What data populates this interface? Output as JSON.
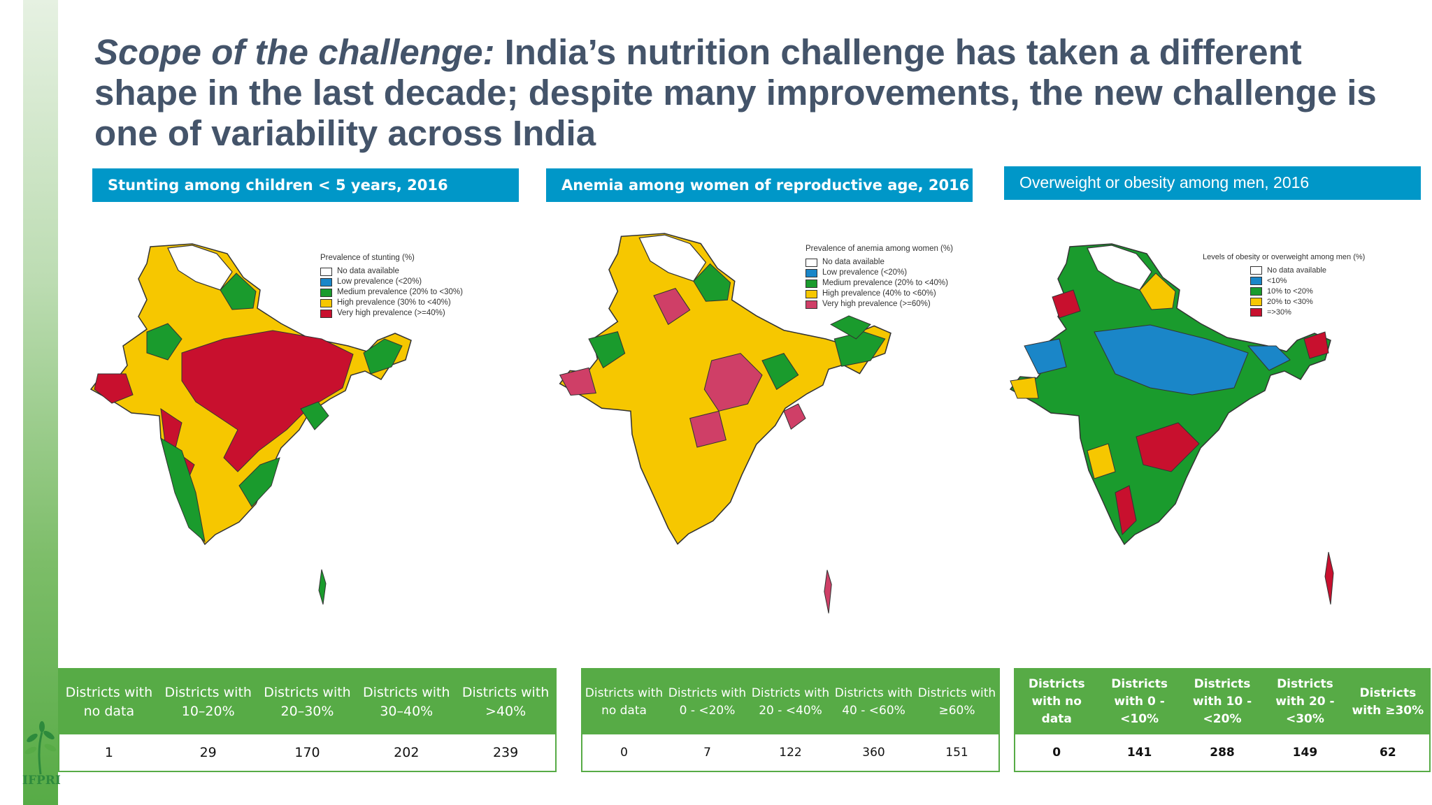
{
  "title": {
    "italic": "Scope of the challenge:",
    "rest": "India’s nutrition challenge has taken a different shape in the last decade; despite many improvements, the new challenge is one of variability across India"
  },
  "colors": {
    "no_data": "#ffffff",
    "blue": "#1a86c8",
    "green": "#1a9b2d",
    "yellow": "#f6c700",
    "red": "#c8102e",
    "pink": "#cf3f67",
    "header_blue": "#0097c8",
    "table_green": "#57ab46"
  },
  "panels": [
    {
      "header": "Stunting among children < 5 years, 2016",
      "legend_title": "Prevalence of stunting (%)",
      "legend": [
        {
          "label": "No data available",
          "color": "#ffffff"
        },
        {
          "label": "Low prevalence (<20%)",
          "color": "#1a86c8"
        },
        {
          "label": "Medium prevalence (20% to <30%)",
          "color": "#1a9b2d"
        },
        {
          "label": "High prevalence (30% to <40%)",
          "color": "#f6c700"
        },
        {
          "label": "Very high prevalence (>=40%)",
          "color": "#c8102e"
        }
      ],
      "table_headers": [
        "Districts with no data",
        "Districts with 10–20%",
        "Districts with 20–30%",
        "Districts with 30–40%",
        "Districts with >40%"
      ],
      "table_values": [
        "1",
        "29",
        "170",
        "202",
        "239"
      ]
    },
    {
      "header": "Anemia among women of reproductive age, 2016",
      "legend_title": "Prevalence of anemia among women (%)",
      "legend": [
        {
          "label": "No data available",
          "color": "#ffffff"
        },
        {
          "label": "Low prevalence (<20%)",
          "color": "#1a86c8"
        },
        {
          "label": "Medium prevalence (20% to <40%)",
          "color": "#1a9b2d"
        },
        {
          "label": "High prevalence (40% to <60%)",
          "color": "#f6c700"
        },
        {
          "label": "Very high prevalence (>=60%)",
          "color": "#cf3f67"
        }
      ],
      "table_headers": [
        "Districts with no data",
        "Districts with 0 - <20%",
        "Districts with 20 - <40%",
        "Districts with 40 - <60%",
        "Districts with ≥60%"
      ],
      "table_values": [
        "0",
        "7",
        "122",
        "360",
        "151"
      ]
    },
    {
      "header": "Overweight or obesity among men, 2016",
      "legend_title": "Levels of obesity or overweight among men (%)",
      "legend": [
        {
          "label": "No data available",
          "color": "#ffffff"
        },
        {
          "label": "<10%",
          "color": "#1a86c8"
        },
        {
          "label": "10% to <20%",
          "color": "#1a9b2d"
        },
        {
          "label": "20% to <30%",
          "color": "#f6c700"
        },
        {
          "label": "=>30%",
          "color": "#c8102e"
        }
      ],
      "table_headers": [
        "Districts with no data",
        "Districts with 0 - <10%",
        "Districts with 10 - <20%",
        "Districts with 20 - <30%",
        "Districts with ≥30%"
      ],
      "table_values": [
        "0",
        "141",
        "288",
        "149",
        "62"
      ]
    }
  ],
  "logo": {
    "text": "IFPRI"
  }
}
